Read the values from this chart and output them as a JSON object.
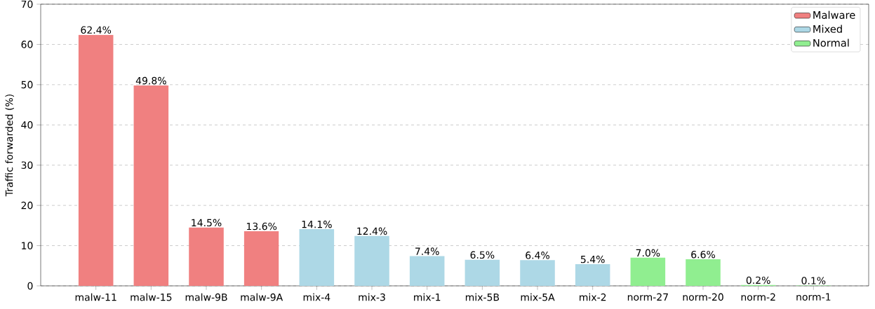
{
  "chart_data": {
    "type": "bar",
    "ylabel": "Traffic forwarded (%)",
    "categories": [
      "malw-11",
      "malw-15",
      "malw-9B",
      "malw-9A",
      "mix-4",
      "mix-3",
      "mix-1",
      "mix-5B",
      "mix-5A",
      "mix-2",
      "norm-27",
      "norm-20",
      "norm-2",
      "norm-1"
    ],
    "series": [
      {
        "name": "Malware",
        "color": "#f08080",
        "values": [
          62.4,
          49.8,
          14.5,
          13.6,
          null,
          null,
          null,
          null,
          null,
          null,
          null,
          null,
          null,
          null
        ],
        "value_labels": [
          "62.4%",
          "49.8%",
          "14.5%",
          "13.6%",
          null,
          null,
          null,
          null,
          null,
          null,
          null,
          null,
          null,
          null
        ]
      },
      {
        "name": "Mixed",
        "color": "#add8e6",
        "values": [
          null,
          null,
          null,
          null,
          14.1,
          12.4,
          7.4,
          6.5,
          6.4,
          5.4,
          null,
          null,
          null,
          null
        ],
        "value_labels": [
          null,
          null,
          null,
          null,
          "14.1%",
          "12.4%",
          "7.4%",
          "6.5%",
          "6.4%",
          "5.4%",
          null,
          null,
          null,
          null
        ]
      },
      {
        "name": "Normal",
        "color": "#90ee90",
        "values": [
          null,
          null,
          null,
          null,
          null,
          null,
          null,
          null,
          null,
          null,
          7.0,
          6.6,
          0.2,
          0.1
        ],
        "value_labels": [
          null,
          null,
          null,
          null,
          null,
          null,
          null,
          null,
          null,
          null,
          "7.0%",
          "6.6%",
          "0.2%",
          "0.1%"
        ]
      }
    ],
    "ylim": [
      0,
      70
    ],
    "yticks": [
      0,
      10,
      20,
      30,
      40,
      50,
      60,
      70
    ],
    "grid": "y",
    "legend": "top right"
  }
}
